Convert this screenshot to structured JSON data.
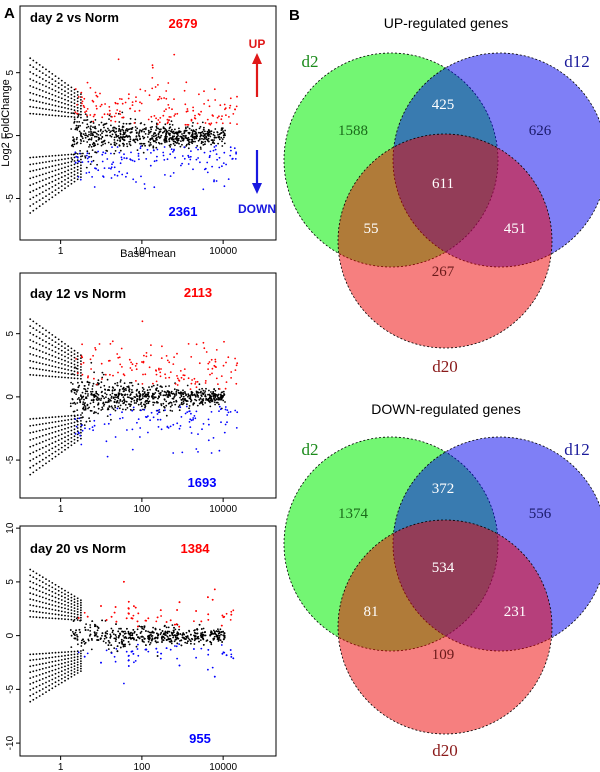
{
  "panel_labels": {
    "a": "A",
    "b": "B"
  },
  "ylabel": "Log2 FoldChange",
  "xlabel": "Base mean",
  "arrows": {
    "up": "UP",
    "down": "DOWN",
    "up_color": "#e01818",
    "down_color": "#1818e0"
  },
  "colors": {
    "up": "#ff0000",
    "down": "#0000ff",
    "ns": "#000000",
    "d2": "#00ee00",
    "d12": "#0000ee",
    "d20": "#ee0000"
  },
  "chart_data": [
    {
      "type": "scatter",
      "title": "day 2 vs Norm",
      "up_count": "2679",
      "down_count": "2361",
      "xscale": "log",
      "xticks": [
        "1",
        "100",
        "10000"
      ],
      "yticks": [
        "-5",
        "0",
        "5"
      ],
      "xlim": [
        0.1,
        200000
      ],
      "ylim": [
        -8.3,
        10.3
      ]
    },
    {
      "type": "scatter",
      "title": "day 12 vs Norm",
      "up_count": "2113",
      "down_count": "1693",
      "xscale": "log",
      "xticks": [
        "1",
        "100",
        "10000"
      ],
      "yticks": [
        "-5",
        "0",
        "5"
      ],
      "xlim": [
        0.1,
        200000
      ],
      "ylim": [
        -8.0,
        9.8
      ]
    },
    {
      "type": "scatter",
      "title": "day 20 vs Norm",
      "up_count": "1384",
      "down_count": "955",
      "xscale": "log",
      "xticks": [
        "1",
        "100",
        "10000"
      ],
      "yticks": [
        "-10",
        "-5",
        "0",
        "5",
        "10"
      ],
      "xlim": [
        0.1,
        200000
      ],
      "ylim": [
        -11.2,
        10.2
      ]
    },
    {
      "type": "venn",
      "title": "UP-regulated genes",
      "sets": [
        "d2",
        "d12",
        "d20"
      ],
      "regions": {
        "d2": "1588",
        "d12": "626",
        "d20": "267",
        "d2_d12": "425",
        "d2_d20": "55",
        "d12_d20": "451",
        "d2_d12_d20": "611"
      }
    },
    {
      "type": "venn",
      "title": "DOWN-regulated genes",
      "sets": [
        "d2",
        "d12",
        "d20"
      ],
      "regions": {
        "d2": "1374",
        "d12": "556",
        "d20": "109",
        "d2_d12": "372",
        "d2_d20": "81",
        "d12_d20": "231",
        "d2_d12_d20": "534"
      }
    }
  ]
}
